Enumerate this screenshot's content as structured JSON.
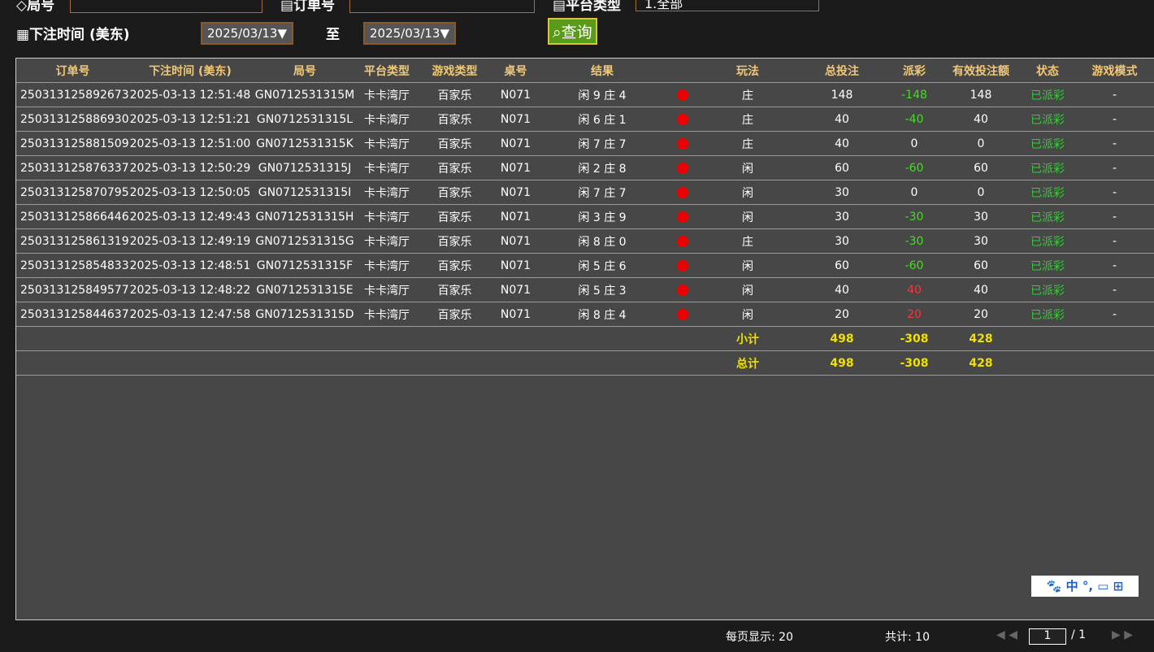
{
  "filters": {
    "round_label": "局号",
    "order_label": "订单号",
    "platform_label": "平台类型",
    "platform_value": "1.全部",
    "time_label": "下注时间 (美东)",
    "date_from": "2025/03/13▼",
    "to": "至",
    "date_to": "2025/03/13▼",
    "query": "查询"
  },
  "table": {
    "columns": [
      "订单号",
      "下注时间 (美东)",
      "局号",
      "平台类型",
      "游戏类型",
      "桌号",
      "结果",
      "玩法",
      "总投注",
      "派彩",
      "有效投注额",
      "状态",
      "游戏模式"
    ],
    "rows": [
      [
        "250313125892673",
        "2025-03-13 12:51:48",
        "GN0712531315M",
        "卡卡湾厅",
        "百家乐",
        "N071",
        "闲 9 庄 4",
        "庄",
        148,
        -148,
        148,
        "已派彩",
        "-"
      ],
      [
        "250313125886930",
        "2025-03-13 12:51:21",
        "GN0712531315L",
        "卡卡湾厅",
        "百家乐",
        "N071",
        "闲 6 庄 1",
        "庄",
        40,
        -40,
        40,
        "已派彩",
        "-"
      ],
      [
        "250313125881509",
        "2025-03-13 12:51:00",
        "GN0712531315K",
        "卡卡湾厅",
        "百家乐",
        "N071",
        "闲 7 庄 7",
        "庄",
        40,
        0,
        0,
        "已派彩",
        "-"
      ],
      [
        "250313125876337",
        "2025-03-13 12:50:29",
        "GN0712531315J",
        "卡卡湾厅",
        "百家乐",
        "N071",
        "闲 2 庄 8",
        "闲",
        60,
        -60,
        60,
        "已派彩",
        "-"
      ],
      [
        "250313125870795",
        "2025-03-13 12:50:05",
        "GN0712531315I",
        "卡卡湾厅",
        "百家乐",
        "N071",
        "闲 7 庄 7",
        "闲",
        30,
        0,
        0,
        "已派彩",
        "-"
      ],
      [
        "250313125866446",
        "2025-03-13 12:49:43",
        "GN0712531315H",
        "卡卡湾厅",
        "百家乐",
        "N071",
        "闲 3 庄 9",
        "闲",
        30,
        -30,
        30,
        "已派彩",
        "-"
      ],
      [
        "250313125861319",
        "2025-03-13 12:49:19",
        "GN0712531315G",
        "卡卡湾厅",
        "百家乐",
        "N071",
        "闲 8 庄 0",
        "庄",
        30,
        -30,
        30,
        "已派彩",
        "-"
      ],
      [
        "250313125854833",
        "2025-03-13 12:48:51",
        "GN0712531315F",
        "卡卡湾厅",
        "百家乐",
        "N071",
        "闲 5 庄 6",
        "闲",
        60,
        -60,
        60,
        "已派彩",
        "-"
      ],
      [
        "250313125849577",
        "2025-03-13 12:48:22",
        "GN0712531315E",
        "卡卡湾厅",
        "百家乐",
        "N071",
        "闲 5 庄 3",
        "闲",
        40,
        40,
        40,
        "已派彩",
        "-"
      ],
      [
        "250313125844637",
        "2025-03-13 12:47:58",
        "GN0712531315D",
        "卡卡湾厅",
        "百家乐",
        "N071",
        "闲 8 庄 4",
        "闲",
        20,
        20,
        20,
        "已派彩",
        "-"
      ]
    ],
    "summary": [
      {
        "label": "小计",
        "bet": 498,
        "payout": -308,
        "valid": 428
      },
      {
        "label": "总计",
        "bet": 498,
        "payout": -308,
        "valid": 428
      }
    ]
  },
  "footer": {
    "page_size": "每页显示: 20",
    "total": "共计: 10",
    "page": "1",
    "pages": "/  1"
  },
  "ime": {
    "label": "中"
  }
}
